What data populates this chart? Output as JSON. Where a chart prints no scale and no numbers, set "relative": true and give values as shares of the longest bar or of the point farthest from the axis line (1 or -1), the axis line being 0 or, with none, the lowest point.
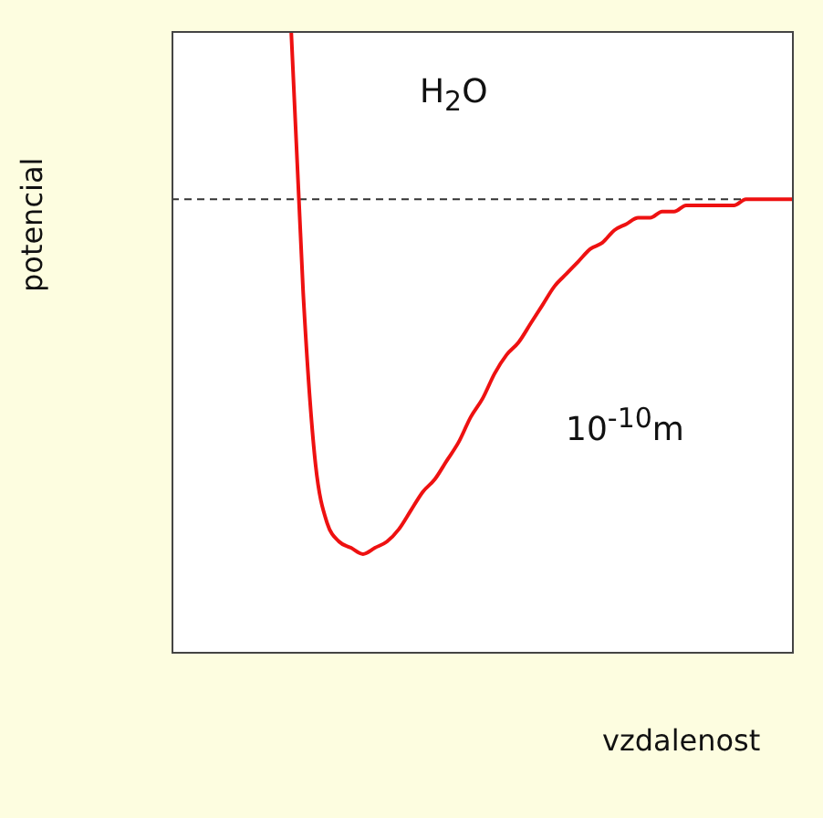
{
  "chart_data": {
    "type": "line",
    "relative": true,
    "xlabel": "vzdalenost",
    "ylabel": "potencial",
    "annotations": [
      "H$_{2}$O",
      "10$^{-10}$m"
    ],
    "categories": [
      null,
      null,
      null,
      null,
      null,
      null,
      null,
      null,
      null,
      null,
      null,
      null,
      null,
      null,
      null,
      null,
      null,
      null,
      null,
      null,
      null,
      null,
      null,
      null,
      null,
      null,
      null,
      null,
      null,
      null,
      null,
      null,
      null,
      null,
      null,
      null,
      null,
      null,
      null,
      null,
      null,
      null,
      null,
      null,
      null,
      null,
      null,
      null,
      null,
      null,
      null,
      null,
      null
    ],
    "series": [
      {
        "color": "#ee1111",
        "values": [
          null,
          null,
          null,
          null,
          null,
          null,
          null,
          null,
          null,
          null,
          1.0,
          0.58,
          0.31,
          0.21,
          0.18,
          0.17,
          0.16,
          0.17,
          0.18,
          0.2,
          0.23,
          0.26,
          0.28,
          0.31,
          0.34,
          0.38,
          0.41,
          0.45,
          0.48,
          0.5,
          0.53,
          0.56,
          0.59,
          0.61,
          0.63,
          0.65,
          0.66,
          0.68,
          0.69,
          0.7,
          0.7,
          0.71,
          0.71,
          0.72,
          0.72,
          0.72,
          0.72,
          0.72,
          0.73,
          0.73,
          0.73,
          0.73,
          0.73
        ]
      }
    ],
    "ref_lines": [
      {
        "axis": "y",
        "value": 0.73,
        "color": "#333333",
        "line_style": "dashed"
      }
    ],
    "marker": "none",
    "line_style": "solid",
    "legend": false,
    "grid": false
  }
}
